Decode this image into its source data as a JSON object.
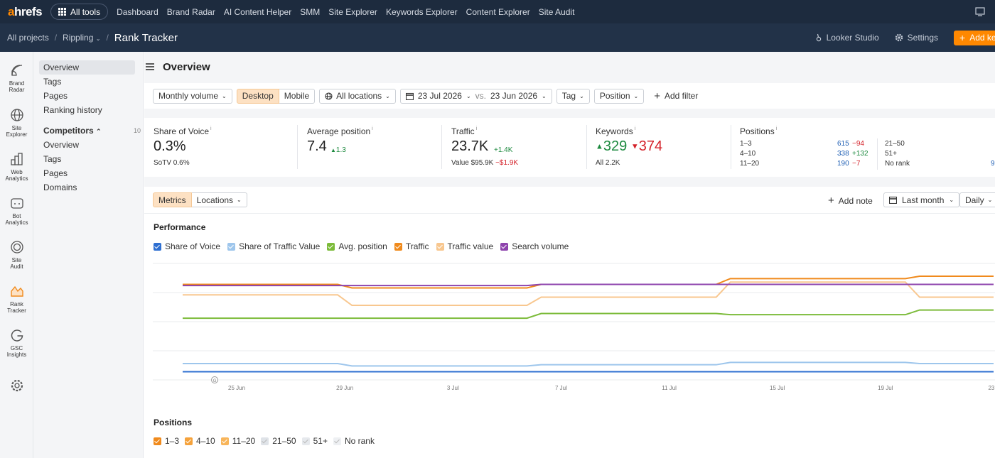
{
  "topnav": {
    "logo_a": "a",
    "logo_rest": "hrefs",
    "all_tools": "All tools",
    "items": [
      "Dashboard",
      "Brand Radar",
      "AI Content Helper",
      "SMM",
      "Site Explorer",
      "Keywords Explorer",
      "Content Explorer",
      "Site Audit"
    ]
  },
  "breadcrumb": {
    "all_projects": "All projects",
    "project": "Rippling",
    "page": "Rank Tracker"
  },
  "subbar": {
    "looker": "Looker Studio",
    "settings": "Settings",
    "add_keywords": "Add ke"
  },
  "rail": [
    {
      "l1": "Brand",
      "l2": "Radar",
      "icon": "brand-radar-icon"
    },
    {
      "l1": "Site",
      "l2": "Explorer",
      "icon": "site-explorer-icon"
    },
    {
      "l1": "Web",
      "l2": "Analytics",
      "icon": "web-analytics-icon"
    },
    {
      "l1": "Bot",
      "l2": "Analytics",
      "icon": "bot-analytics-icon"
    },
    {
      "l1": "Site",
      "l2": "Audit",
      "icon": "site-audit-icon"
    },
    {
      "l1": "Rank",
      "l2": "Tracker",
      "icon": "rank-tracker-icon"
    },
    {
      "l1": "GSC",
      "l2": "Insights",
      "icon": "gsc-insights-icon"
    }
  ],
  "sidebar": {
    "overview": "Overview",
    "tags": "Tags",
    "pages": "Pages",
    "ranking_history": "Ranking history",
    "competitors": "Competitors",
    "competitors_count": "10",
    "c_overview": "Overview",
    "c_tags": "Tags",
    "c_pages": "Pages",
    "c_domains": "Domains"
  },
  "main": {
    "title": "Overview"
  },
  "filters": {
    "volume": "Monthly volume",
    "desktop": "Desktop",
    "mobile": "Mobile",
    "locations": "All locations",
    "date1": "23 Jul 2026",
    "vs": "vs.",
    "date2": "23 Jun 2026",
    "tag": "Tag",
    "position": "Position",
    "add_filter": "Add filter"
  },
  "stats": {
    "sov_label": "Share of Voice",
    "sov_value": "0.3%",
    "sov_sub": "SoTV  0.6%",
    "avgpos_label": "Average position",
    "avgpos_value": "7.4",
    "avgpos_delta": "1.3",
    "traffic_label": "Traffic",
    "traffic_value": "23.7K",
    "traffic_delta": "+1.4K",
    "traffic_sub_label": "Value  $95.9K",
    "traffic_sub_delta": "−$1.9K",
    "kw_label": "Keywords",
    "kw_up": "329",
    "kw_down": "374",
    "kw_all": "All  2.2K",
    "pos_label": "Positions",
    "positions": [
      {
        "range": "1–3",
        "value": "615",
        "delta": "−94",
        "dcolor": "red"
      },
      {
        "range": "4–10",
        "value": "338",
        "delta": "+132",
        "dcolor": "green"
      },
      {
        "range": "11–20",
        "value": "190",
        "delta": "−7",
        "dcolor": "red"
      }
    ],
    "positions2": [
      "21–50",
      "51+",
      "No rank"
    ],
    "positions2_clipped": "9"
  },
  "chartbar": {
    "metrics": "Metrics",
    "locations": "Locations",
    "add_note": "Add note",
    "period": "Last month",
    "granularity": "Daily"
  },
  "performance": {
    "title": "Performance",
    "legend": [
      {
        "name": "Share of Voice",
        "color": "#2e6fd1",
        "checked": true
      },
      {
        "name": "Share of Traffic Value",
        "color": "#9ec6ec",
        "checked": true
      },
      {
        "name": "Avg. position",
        "color": "#7cbb3a",
        "checked": true
      },
      {
        "name": "Traffic",
        "color": "#f08a1c",
        "checked": true
      },
      {
        "name": "Traffic value",
        "color": "#f8c78f",
        "checked": true
      },
      {
        "name": "Search volume",
        "color": "#8e44ad",
        "checked": true
      }
    ]
  },
  "chart_data": {
    "type": "line",
    "title": "Performance",
    "x": [
      "23 Jun",
      "24 Jun",
      "25 Jun",
      "26 Jun",
      "27 Jun",
      "28 Jun",
      "29 Jun",
      "30 Jun",
      "1 Jul",
      "2 Jul",
      "3 Jul",
      "4 Jul",
      "5 Jul",
      "6 Jul",
      "7 Jul",
      "8 Jul",
      "9 Jul",
      "10 Jul",
      "11 Jul",
      "12 Jul",
      "13 Jul",
      "14 Jul",
      "15 Jul",
      "16 Jul",
      "17 Jul",
      "18 Jul",
      "19 Jul",
      "20 Jul",
      "21 Jul",
      "22 Jul",
      "23 Jul"
    ],
    "x_ticks": [
      "25 Jun",
      "29 Jun",
      "3 Jul",
      "7 Jul",
      "11 Jul",
      "15 Jul",
      "19 Jul",
      "23 J"
    ],
    "ylim": [
      0,
      100
    ],
    "grid": true,
    "series": [
      {
        "name": "Share of Voice",
        "color": "#2e6fd1",
        "values": [
          7,
          7,
          7,
          7,
          7,
          7,
          7,
          7,
          7,
          7,
          7,
          7,
          7,
          7,
          7,
          7,
          7,
          7,
          7,
          7,
          7,
          7,
          7,
          7,
          7,
          7,
          7,
          7,
          7,
          7,
          7
        ]
      },
      {
        "name": "Share of Traffic Value",
        "color": "#9ec6ec",
        "values": [
          14,
          14,
          14,
          14,
          14,
          14,
          12,
          12,
          12,
          12,
          12,
          12,
          12,
          13,
          13,
          13,
          13,
          13,
          13,
          13,
          15,
          15,
          15,
          15,
          15,
          15,
          15,
          14,
          14,
          14,
          14
        ]
      },
      {
        "name": "Avg. position",
        "color": "#7cbb3a",
        "values": [
          53,
          53,
          53,
          53,
          53,
          53,
          53,
          53,
          53,
          53,
          53,
          53,
          53,
          57,
          57,
          57,
          57,
          57,
          57,
          57,
          56,
          56,
          56,
          56,
          56,
          56,
          56,
          60,
          60,
          60,
          60
        ]
      },
      {
        "name": "Traffic",
        "color": "#f08a1c",
        "values": [
          82,
          82,
          82,
          82,
          82,
          82,
          79,
          79,
          79,
          79,
          79,
          79,
          79,
          82,
          82,
          82,
          82,
          82,
          82,
          82,
          87,
          87,
          87,
          87,
          87,
          87,
          87,
          89,
          89,
          89,
          89
        ]
      },
      {
        "name": "Traffic value",
        "color": "#f8c78f",
        "values": [
          73,
          73,
          73,
          73,
          73,
          73,
          64,
          64,
          64,
          64,
          64,
          64,
          64,
          71,
          71,
          71,
          71,
          71,
          71,
          71,
          84,
          84,
          84,
          84,
          84,
          84,
          84,
          71,
          71,
          71,
          71
        ]
      },
      {
        "name": "Search volume",
        "color": "#8e44ad",
        "values": [
          81,
          81,
          81,
          81,
          81,
          81,
          81,
          81,
          81,
          81,
          81,
          81,
          81,
          82,
          82,
          82,
          82,
          82,
          82,
          82,
          82,
          82,
          82,
          82,
          82,
          82,
          82,
          82,
          82,
          82,
          82
        ]
      }
    ],
    "annotation": "G"
  },
  "positions_section": {
    "title": "Positions",
    "legend": [
      {
        "name": "1–3",
        "color": "#f08a1c",
        "checked": true
      },
      {
        "name": "4–10",
        "color": "#f5a23b",
        "checked": true
      },
      {
        "name": "11–20",
        "color": "#f8b55a",
        "checked": true
      },
      {
        "name": "21–50",
        "color": "#dfe3e8",
        "checked": true
      },
      {
        "name": "51+",
        "color": "#e6e9ed",
        "checked": true
      },
      {
        "name": "No rank",
        "color": "#eef0f3",
        "checked": true
      }
    ]
  }
}
